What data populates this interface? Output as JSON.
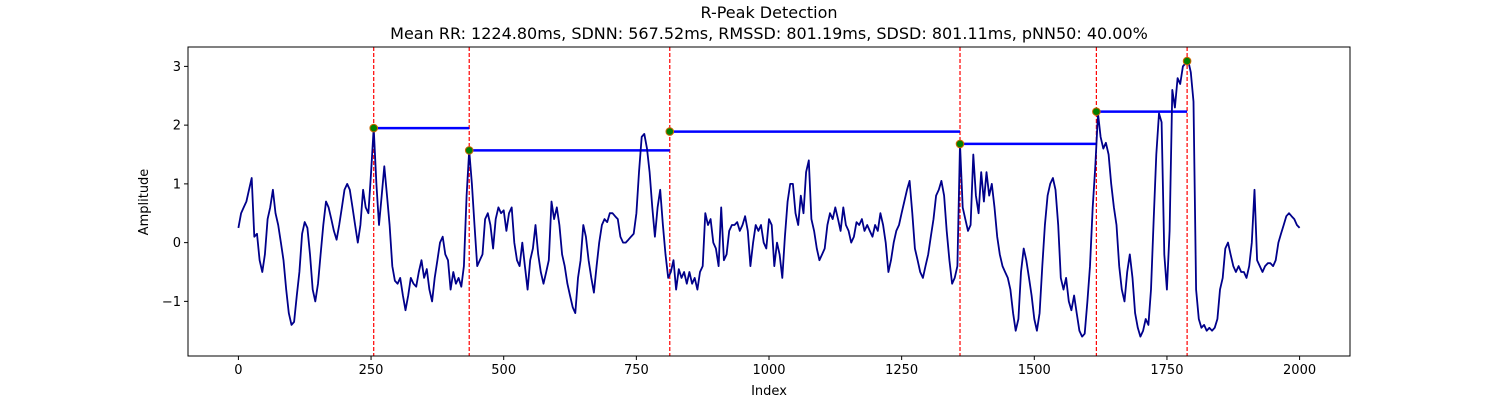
{
  "chart_data": {
    "type": "line",
    "title": "R-Peak Detection",
    "subtitle": "Mean RR: 1224.80ms, SDNN: 567.52ms, RMSSD: 801.19ms, SDSD: 801.11ms, pNN50: 40.00%",
    "xlabel": "Index",
    "ylabel": "Amplitude",
    "xlim": [
      -95,
      2095
    ],
    "ylim": [
      -1.93,
      3.33
    ],
    "x_ticks": [
      0,
      250,
      500,
      750,
      1000,
      1250,
      1500,
      1750,
      2000
    ],
    "y_ticks": [
      -1,
      0,
      1,
      2,
      3
    ],
    "grid": false,
    "colors": {
      "signal": "#00008b",
      "peak_lines": "#ff0000",
      "rr_intervals": "#0000ff",
      "peak_markers": "#008000"
    },
    "signal": [
      [
        0,
        0.25
      ],
      [
        5,
        0.5
      ],
      [
        10,
        0.6
      ],
      [
        15,
        0.7
      ],
      [
        20,
        0.9
      ],
      [
        25,
        1.1
      ],
      [
        30,
        0.1
      ],
      [
        35,
        0.15
      ],
      [
        40,
        -0.3
      ],
      [
        45,
        -0.5
      ],
      [
        50,
        -0.2
      ],
      [
        55,
        0.4
      ],
      [
        60,
        0.6
      ],
      [
        65,
        0.9
      ],
      [
        70,
        0.5
      ],
      [
        75,
        0.3
      ],
      [
        80,
        0.0
      ],
      [
        85,
        -0.3
      ],
      [
        90,
        -0.8
      ],
      [
        95,
        -1.2
      ],
      [
        100,
        -1.4
      ],
      [
        105,
        -1.35
      ],
      [
        110,
        -0.9
      ],
      [
        115,
        -0.5
      ],
      [
        120,
        0.15
      ],
      [
        125,
        0.35
      ],
      [
        130,
        0.25
      ],
      [
        135,
        -0.2
      ],
      [
        140,
        -0.8
      ],
      [
        145,
        -1.0
      ],
      [
        150,
        -0.7
      ],
      [
        155,
        -0.2
      ],
      [
        160,
        0.3
      ],
      [
        165,
        0.7
      ],
      [
        170,
        0.6
      ],
      [
        175,
        0.4
      ],
      [
        180,
        0.2
      ],
      [
        185,
        0.05
      ],
      [
        190,
        0.3
      ],
      [
        195,
        0.6
      ],
      [
        200,
        0.9
      ],
      [
        205,
        1.0
      ],
      [
        210,
        0.9
      ],
      [
        215,
        0.6
      ],
      [
        220,
        0.3
      ],
      [
        225,
        0.0
      ],
      [
        230,
        0.3
      ],
      [
        235,
        0.9
      ],
      [
        240,
        0.6
      ],
      [
        245,
        0.5
      ],
      [
        250,
        1.2
      ],
      [
        255,
        1.95
      ],
      [
        260,
        1.0
      ],
      [
        265,
        0.3
      ],
      [
        270,
        0.8
      ],
      [
        275,
        1.3
      ],
      [
        280,
        0.8
      ],
      [
        285,
        0.3
      ],
      [
        290,
        -0.4
      ],
      [
        295,
        -0.65
      ],
      [
        300,
        -0.7
      ],
      [
        305,
        -0.6
      ],
      [
        310,
        -0.9
      ],
      [
        315,
        -1.15
      ],
      [
        320,
        -0.9
      ],
      [
        325,
        -0.6
      ],
      [
        330,
        -0.7
      ],
      [
        335,
        -0.75
      ],
      [
        340,
        -0.5
      ],
      [
        345,
        -0.3
      ],
      [
        350,
        -0.6
      ],
      [
        355,
        -0.45
      ],
      [
        360,
        -0.8
      ],
      [
        365,
        -1.0
      ],
      [
        370,
        -0.6
      ],
      [
        375,
        -0.3
      ],
      [
        380,
        0.0
      ],
      [
        385,
        0.1
      ],
      [
        390,
        -0.2
      ],
      [
        395,
        -0.3
      ],
      [
        400,
        -0.8
      ],
      [
        405,
        -0.5
      ],
      [
        410,
        -0.7
      ],
      [
        415,
        -0.6
      ],
      [
        420,
        -0.75
      ],
      [
        425,
        -0.4
      ],
      [
        430,
        0.8
      ],
      [
        435,
        1.57
      ],
      [
        440,
        1.0
      ],
      [
        445,
        0.3
      ],
      [
        450,
        -0.4
      ],
      [
        455,
        -0.3
      ],
      [
        460,
        -0.2
      ],
      [
        465,
        0.4
      ],
      [
        470,
        0.5
      ],
      [
        475,
        0.3
      ],
      [
        480,
        -0.1
      ],
      [
        485,
        0.4
      ],
      [
        490,
        0.6
      ],
      [
        495,
        0.5
      ],
      [
        500,
        0.55
      ],
      [
        505,
        0.2
      ],
      [
        510,
        0.5
      ],
      [
        515,
        0.6
      ],
      [
        520,
        0.0
      ],
      [
        525,
        -0.3
      ],
      [
        530,
        -0.4
      ],
      [
        535,
        0.0
      ],
      [
        540,
        -0.4
      ],
      [
        545,
        -0.8
      ],
      [
        550,
        -0.3
      ],
      [
        555,
        -0.1
      ],
      [
        560,
        0.3
      ],
      [
        565,
        -0.2
      ],
      [
        570,
        -0.5
      ],
      [
        575,
        -0.7
      ],
      [
        580,
        -0.5
      ],
      [
        585,
        -0.3
      ],
      [
        590,
        0.7
      ],
      [
        595,
        0.4
      ],
      [
        600,
        0.6
      ],
      [
        605,
        0.3
      ],
      [
        610,
        -0.2
      ],
      [
        615,
        -0.4
      ],
      [
        620,
        -0.7
      ],
      [
        625,
        -0.9
      ],
      [
        630,
        -1.1
      ],
      [
        635,
        -1.2
      ],
      [
        640,
        -0.6
      ],
      [
        645,
        -0.3
      ],
      [
        650,
        0.3
      ],
      [
        655,
        0.1
      ],
      [
        660,
        -0.3
      ],
      [
        665,
        -0.6
      ],
      [
        670,
        -0.85
      ],
      [
        675,
        -0.4
      ],
      [
        680,
        0.0
      ],
      [
        685,
        0.3
      ],
      [
        690,
        0.4
      ],
      [
        695,
        0.35
      ],
      [
        700,
        0.5
      ],
      [
        705,
        0.5
      ],
      [
        710,
        0.45
      ],
      [
        715,
        0.4
      ],
      [
        720,
        0.1
      ],
      [
        725,
        0.0
      ],
      [
        730,
        0.0
      ],
      [
        735,
        0.05
      ],
      [
        740,
        0.1
      ],
      [
        745,
        0.15
      ],
      [
        750,
        0.5
      ],
      [
        755,
        1.2
      ],
      [
        760,
        1.8
      ],
      [
        765,
        1.85
      ],
      [
        770,
        1.6
      ],
      [
        775,
        1.2
      ],
      [
        780,
        0.6
      ],
      [
        785,
        0.1
      ],
      [
        790,
        0.6
      ],
      [
        795,
        0.9
      ],
      [
        800,
        0.3
      ],
      [
        805,
        -0.2
      ],
      [
        810,
        -0.6
      ],
      [
        815,
        -0.5
      ],
      [
        820,
        -0.3
      ],
      [
        825,
        -0.8
      ],
      [
        830,
        -0.45
      ],
      [
        835,
        -0.6
      ],
      [
        840,
        -0.5
      ],
      [
        845,
        -0.7
      ],
      [
        850,
        -0.5
      ],
      [
        855,
        -0.7
      ],
      [
        860,
        -0.6
      ],
      [
        865,
        -0.8
      ],
      [
        870,
        -0.5
      ],
      [
        875,
        -0.4
      ],
      [
        880,
        0.5
      ],
      [
        885,
        0.3
      ],
      [
        890,
        0.4
      ],
      [
        895,
        0.0
      ],
      [
        900,
        -0.1
      ],
      [
        905,
        -0.4
      ],
      [
        910,
        0.6
      ],
      [
        915,
        -0.3
      ],
      [
        920,
        -0.2
      ],
      [
        925,
        0.2
      ],
      [
        930,
        0.3
      ],
      [
        935,
        0.3
      ],
      [
        940,
        0.35
      ],
      [
        945,
        0.2
      ],
      [
        950,
        0.3
      ],
      [
        955,
        0.45
      ],
      [
        960,
        0.2
      ],
      [
        965,
        -0.4
      ],
      [
        970,
        0.0
      ],
      [
        975,
        0.3
      ],
      [
        980,
        0.2
      ],
      [
        985,
        0.3
      ],
      [
        990,
        0.0
      ],
      [
        995,
        -0.1
      ],
      [
        1000,
        0.4
      ],
      [
        1005,
        0.3
      ],
      [
        1010,
        -0.4
      ],
      [
        1015,
        0.0
      ],
      [
        1020,
        -0.2
      ],
      [
        1025,
        -0.6
      ],
      [
        1030,
        0.1
      ],
      [
        1035,
        0.7
      ],
      [
        1040,
        1.0
      ],
      [
        1045,
        1.0
      ],
      [
        1050,
        0.5
      ],
      [
        1055,
        0.3
      ],
      [
        1060,
        0.8
      ],
      [
        1065,
        0.5
      ],
      [
        1070,
        1.2
      ],
      [
        1075,
        1.4
      ],
      [
        1080,
        0.4
      ],
      [
        1085,
        0.2
      ],
      [
        1090,
        -0.1
      ],
      [
        1095,
        -0.3
      ],
      [
        1100,
        -0.2
      ],
      [
        1105,
        -0.1
      ],
      [
        1110,
        0.3
      ],
      [
        1115,
        0.5
      ],
      [
        1120,
        0.4
      ],
      [
        1125,
        0.6
      ],
      [
        1130,
        0.4
      ],
      [
        1135,
        0.2
      ],
      [
        1140,
        0.6
      ],
      [
        1145,
        0.3
      ],
      [
        1150,
        0.2
      ],
      [
        1155,
        0.0
      ],
      [
        1160,
        0.1
      ],
      [
        1165,
        0.35
      ],
      [
        1170,
        0.3
      ],
      [
        1175,
        0.4
      ],
      [
        1180,
        0.2
      ],
      [
        1185,
        0.3
      ],
      [
        1190,
        0.2
      ],
      [
        1195,
        0.1
      ],
      [
        1200,
        0.3
      ],
      [
        1205,
        0.2
      ],
      [
        1210,
        0.5
      ],
      [
        1215,
        0.3
      ],
      [
        1220,
        0.0
      ],
      [
        1225,
        -0.5
      ],
      [
        1230,
        -0.3
      ],
      [
        1235,
        0.0
      ],
      [
        1240,
        0.2
      ],
      [
        1245,
        0.3
      ],
      [
        1250,
        0.5
      ],
      [
        1255,
        0.7
      ],
      [
        1260,
        0.9
      ],
      [
        1265,
        1.05
      ],
      [
        1270,
        0.5
      ],
      [
        1275,
        -0.1
      ],
      [
        1280,
        -0.3
      ],
      [
        1285,
        -0.5
      ],
      [
        1290,
        -0.6
      ],
      [
        1295,
        -0.4
      ],
      [
        1300,
        -0.2
      ],
      [
        1305,
        0.1
      ],
      [
        1310,
        0.4
      ],
      [
        1315,
        0.8
      ],
      [
        1320,
        0.9
      ],
      [
        1325,
        1.05
      ],
      [
        1330,
        0.8
      ],
      [
        1335,
        0.2
      ],
      [
        1340,
        -0.3
      ],
      [
        1345,
        -0.7
      ],
      [
        1350,
        -0.6
      ],
      [
        1355,
        -0.4
      ],
      [
        1360,
        1.68
      ],
      [
        1365,
        0.6
      ],
      [
        1370,
        0.4
      ],
      [
        1375,
        0.2
      ],
      [
        1380,
        0.3
      ],
      [
        1385,
        1.5
      ],
      [
        1390,
        0.8
      ],
      [
        1395,
        0.5
      ],
      [
        1400,
        1.2
      ],
      [
        1405,
        0.7
      ],
      [
        1410,
        1.2
      ],
      [
        1415,
        0.8
      ],
      [
        1420,
        1.0
      ],
      [
        1425,
        0.6
      ],
      [
        1430,
        0.1
      ],
      [
        1435,
        -0.2
      ],
      [
        1440,
        -0.4
      ],
      [
        1445,
        -0.5
      ],
      [
        1450,
        -0.6
      ],
      [
        1455,
        -0.8
      ],
      [
        1460,
        -1.2
      ],
      [
        1465,
        -1.5
      ],
      [
        1470,
        -1.3
      ],
      [
        1475,
        -0.5
      ],
      [
        1480,
        -0.1
      ],
      [
        1485,
        -0.3
      ],
      [
        1490,
        -0.6
      ],
      [
        1495,
        -0.9
      ],
      [
        1500,
        -1.3
      ],
      [
        1505,
        -1.5
      ],
      [
        1510,
        -1.2
      ],
      [
        1515,
        -0.4
      ],
      [
        1520,
        0.3
      ],
      [
        1525,
        0.8
      ],
      [
        1530,
        1.0
      ],
      [
        1535,
        1.1
      ],
      [
        1540,
        0.9
      ],
      [
        1545,
        0.3
      ],
      [
        1550,
        -0.6
      ],
      [
        1555,
        -0.8
      ],
      [
        1560,
        -0.6
      ],
      [
        1565,
        -1.0
      ],
      [
        1570,
        -1.15
      ],
      [
        1575,
        -0.9
      ],
      [
        1580,
        -1.2
      ],
      [
        1585,
        -1.5
      ],
      [
        1590,
        -1.6
      ],
      [
        1595,
        -1.55
      ],
      [
        1600,
        -1.0
      ],
      [
        1605,
        -0.4
      ],
      [
        1610,
        0.6
      ],
      [
        1615,
        1.3
      ],
      [
        1620,
        2.2
      ],
      [
        1625,
        1.8
      ],
      [
        1630,
        1.6
      ],
      [
        1635,
        1.7
      ],
      [
        1640,
        1.5
      ],
      [
        1645,
        1.0
      ],
      [
        1650,
        0.6
      ],
      [
        1655,
        0.3
      ],
      [
        1660,
        -0.4
      ],
      [
        1665,
        -0.8
      ],
      [
        1670,
        -1.0
      ],
      [
        1675,
        -0.5
      ],
      [
        1680,
        -0.2
      ],
      [
        1685,
        -0.6
      ],
      [
        1690,
        -1.2
      ],
      [
        1695,
        -1.45
      ],
      [
        1700,
        -1.6
      ],
      [
        1705,
        -1.5
      ],
      [
        1710,
        -1.3
      ],
      [
        1715,
        -1.4
      ],
      [
        1720,
        -0.8
      ],
      [
        1725,
        0.4
      ],
      [
        1730,
        1.5
      ],
      [
        1735,
        2.2
      ],
      [
        1740,
        2.05
      ],
      [
        1745,
        -0.2
      ],
      [
        1750,
        -0.8
      ],
      [
        1755,
        0.2
      ],
      [
        1760,
        2.6
      ],
      [
        1765,
        2.3
      ],
      [
        1770,
        2.8
      ],
      [
        1775,
        2.7
      ],
      [
        1780,
        3.0
      ],
      [
        1785,
        3.05
      ],
      [
        1790,
        3.1
      ],
      [
        1795,
        2.9
      ],
      [
        1800,
        2.4
      ],
      [
        1805,
        -0.8
      ],
      [
        1810,
        -1.3
      ],
      [
        1815,
        -1.45
      ],
      [
        1820,
        -1.4
      ],
      [
        1825,
        -1.5
      ],
      [
        1830,
        -1.45
      ],
      [
        1835,
        -1.5
      ],
      [
        1840,
        -1.45
      ],
      [
        1845,
        -1.3
      ],
      [
        1850,
        -0.8
      ],
      [
        1855,
        -0.6
      ],
      [
        1860,
        -0.1
      ],
      [
        1865,
        0.0
      ],
      [
        1870,
        -0.2
      ],
      [
        1875,
        -0.4
      ],
      [
        1880,
        -0.5
      ],
      [
        1885,
        -0.4
      ],
      [
        1890,
        -0.5
      ],
      [
        1895,
        -0.5
      ],
      [
        1900,
        -0.6
      ],
      [
        1905,
        -0.4
      ],
      [
        1910,
        0.0
      ],
      [
        1915,
        0.9
      ],
      [
        1920,
        -0.3
      ],
      [
        1925,
        -0.4
      ],
      [
        1930,
        -0.5
      ],
      [
        1935,
        -0.4
      ],
      [
        1940,
        -0.35
      ],
      [
        1945,
        -0.35
      ],
      [
        1950,
        -0.4
      ],
      [
        1955,
        -0.3
      ],
      [
        1960,
        0.0
      ],
      [
        1965,
        0.15
      ],
      [
        1970,
        0.3
      ],
      [
        1975,
        0.45
      ],
      [
        1980,
        0.5
      ],
      [
        1985,
        0.45
      ],
      [
        1990,
        0.4
      ],
      [
        1995,
        0.3
      ],
      [
        2000,
        0.25
      ]
    ],
    "peaks": [
      {
        "x": 255,
        "y": 1.95
      },
      {
        "x": 435,
        "y": 1.57
      },
      {
        "x": 813,
        "y": 1.89
      },
      {
        "x": 1360,
        "y": 1.68
      },
      {
        "x": 1617,
        "y": 2.23
      },
      {
        "x": 1788,
        "y": 3.09
      }
    ],
    "rr_intervals": [
      {
        "x_start": 255,
        "x_end": 435,
        "y": 1.95
      },
      {
        "x_start": 435,
        "x_end": 813,
        "y": 1.57
      },
      {
        "x_start": 813,
        "x_end": 1360,
        "y": 1.89
      },
      {
        "x_start": 1360,
        "x_end": 1617,
        "y": 1.68
      },
      {
        "x_start": 1617,
        "x_end": 1788,
        "y": 2.23
      }
    ]
  }
}
